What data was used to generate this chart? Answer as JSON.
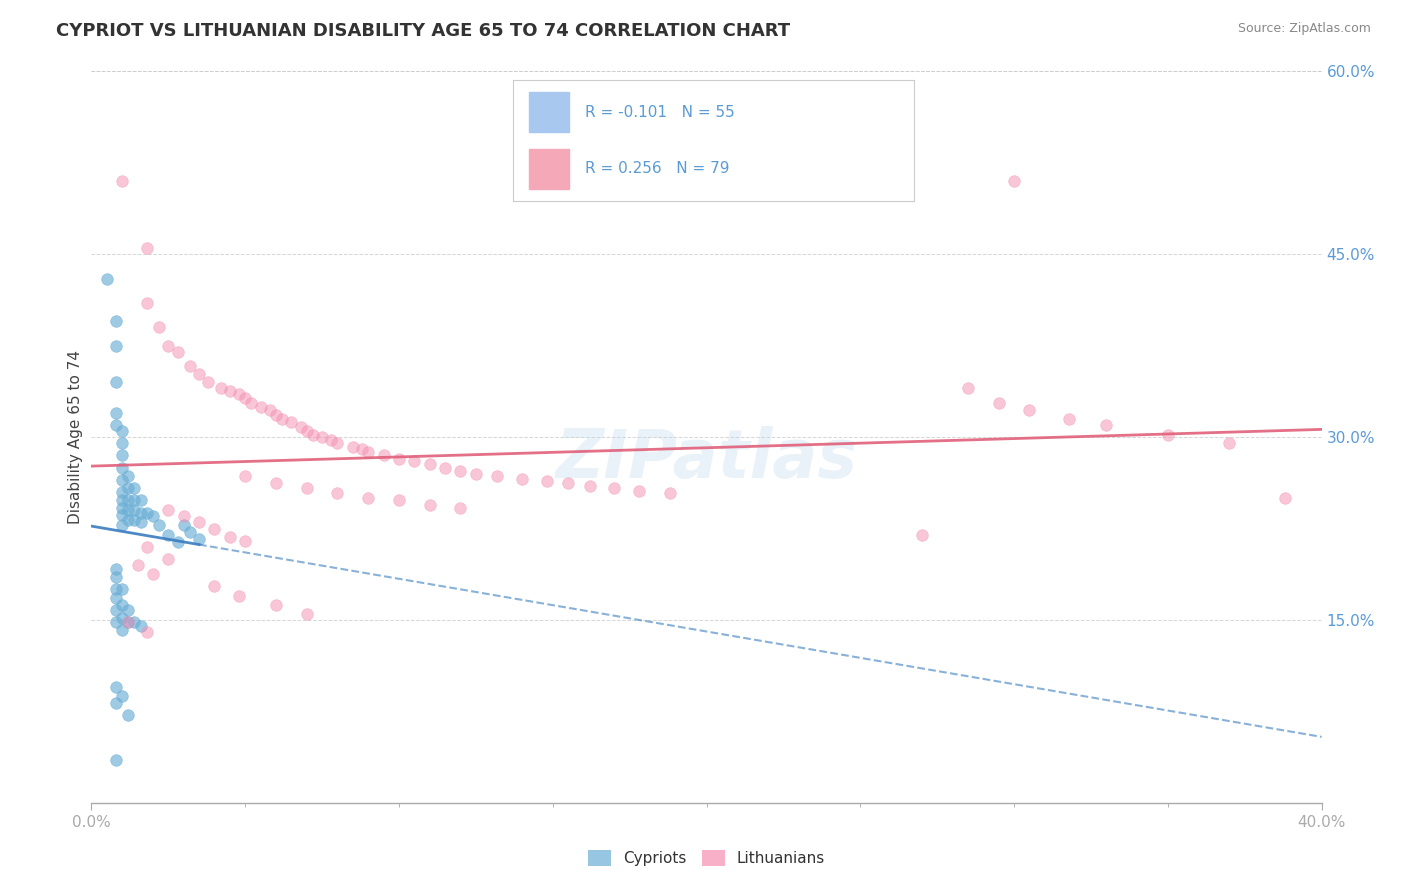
{
  "title": "CYPRIOT VS LITHUANIAN DISABILITY AGE 65 TO 74 CORRELATION CHART",
  "source_text": "Source: ZipAtlas.com",
  "ylabel": "Disability Age 65 to 74",
  "xlim": [
    0.0,
    0.4
  ],
  "ylim": [
    0.0,
    0.6
  ],
  "watermark": "ZIPatlas",
  "cypriot_color": "#6aaed6",
  "lithuanian_color": "#f48fb1",
  "cypriot_line_color": "#3a7dbf",
  "lithuanian_line_color": "#e0607a",
  "grid_color": "#cccccc",
  "background_color": "#ffffff",
  "legend_box_color": "#a8c8f0",
  "legend_box_color2": "#f5a8b8",
  "label_color": "#5b9bd5",
  "cypriot_points": [
    [
      0.005,
      0.43
    ],
    [
      0.008,
      0.395
    ],
    [
      0.008,
      0.375
    ],
    [
      0.008,
      0.345
    ],
    [
      0.008,
      0.32
    ],
    [
      0.008,
      0.31
    ],
    [
      0.01,
      0.305
    ],
    [
      0.01,
      0.295
    ],
    [
      0.01,
      0.285
    ],
    [
      0.01,
      0.275
    ],
    [
      0.01,
      0.265
    ],
    [
      0.01,
      0.255
    ],
    [
      0.01,
      0.248
    ],
    [
      0.01,
      0.242
    ],
    [
      0.01,
      0.236
    ],
    [
      0.01,
      0.228
    ],
    [
      0.012,
      0.268
    ],
    [
      0.012,
      0.258
    ],
    [
      0.012,
      0.248
    ],
    [
      0.012,
      0.24
    ],
    [
      0.012,
      0.232
    ],
    [
      0.014,
      0.258
    ],
    [
      0.014,
      0.248
    ],
    [
      0.014,
      0.24
    ],
    [
      0.014,
      0.232
    ],
    [
      0.016,
      0.248
    ],
    [
      0.016,
      0.238
    ],
    [
      0.016,
      0.23
    ],
    [
      0.018,
      0.238
    ],
    [
      0.02,
      0.235
    ],
    [
      0.022,
      0.228
    ],
    [
      0.025,
      0.22
    ],
    [
      0.028,
      0.214
    ],
    [
      0.03,
      0.228
    ],
    [
      0.032,
      0.222
    ],
    [
      0.035,
      0.216
    ],
    [
      0.008,
      0.192
    ],
    [
      0.008,
      0.185
    ],
    [
      0.008,
      0.175
    ],
    [
      0.008,
      0.168
    ],
    [
      0.008,
      0.158
    ],
    [
      0.008,
      0.148
    ],
    [
      0.01,
      0.175
    ],
    [
      0.01,
      0.162
    ],
    [
      0.01,
      0.152
    ],
    [
      0.01,
      0.142
    ],
    [
      0.012,
      0.158
    ],
    [
      0.012,
      0.148
    ],
    [
      0.014,
      0.148
    ],
    [
      0.016,
      0.145
    ],
    [
      0.008,
      0.095
    ],
    [
      0.008,
      0.082
    ],
    [
      0.01,
      0.088
    ],
    [
      0.012,
      0.072
    ],
    [
      0.008,
      0.035
    ]
  ],
  "lithuanian_points": [
    [
      0.01,
      0.51
    ],
    [
      0.018,
      0.455
    ],
    [
      0.018,
      0.41
    ],
    [
      0.022,
      0.39
    ],
    [
      0.025,
      0.375
    ],
    [
      0.028,
      0.37
    ],
    [
      0.032,
      0.358
    ],
    [
      0.035,
      0.352
    ],
    [
      0.038,
      0.345
    ],
    [
      0.042,
      0.34
    ],
    [
      0.045,
      0.338
    ],
    [
      0.048,
      0.335
    ],
    [
      0.05,
      0.332
    ],
    [
      0.052,
      0.328
    ],
    [
      0.055,
      0.325
    ],
    [
      0.058,
      0.322
    ],
    [
      0.06,
      0.318
    ],
    [
      0.062,
      0.315
    ],
    [
      0.065,
      0.312
    ],
    [
      0.068,
      0.308
    ],
    [
      0.07,
      0.305
    ],
    [
      0.072,
      0.302
    ],
    [
      0.075,
      0.3
    ],
    [
      0.078,
      0.298
    ],
    [
      0.08,
      0.295
    ],
    [
      0.085,
      0.292
    ],
    [
      0.088,
      0.29
    ],
    [
      0.09,
      0.288
    ],
    [
      0.095,
      0.285
    ],
    [
      0.1,
      0.282
    ],
    [
      0.105,
      0.28
    ],
    [
      0.11,
      0.278
    ],
    [
      0.115,
      0.275
    ],
    [
      0.12,
      0.272
    ],
    [
      0.125,
      0.27
    ],
    [
      0.132,
      0.268
    ],
    [
      0.14,
      0.266
    ],
    [
      0.148,
      0.264
    ],
    [
      0.155,
      0.262
    ],
    [
      0.162,
      0.26
    ],
    [
      0.17,
      0.258
    ],
    [
      0.178,
      0.256
    ],
    [
      0.188,
      0.254
    ],
    [
      0.05,
      0.268
    ],
    [
      0.06,
      0.262
    ],
    [
      0.07,
      0.258
    ],
    [
      0.08,
      0.254
    ],
    [
      0.09,
      0.25
    ],
    [
      0.1,
      0.248
    ],
    [
      0.11,
      0.244
    ],
    [
      0.12,
      0.242
    ],
    [
      0.025,
      0.24
    ],
    [
      0.03,
      0.235
    ],
    [
      0.035,
      0.23
    ],
    [
      0.04,
      0.225
    ],
    [
      0.045,
      0.218
    ],
    [
      0.05,
      0.215
    ],
    [
      0.018,
      0.21
    ],
    [
      0.025,
      0.2
    ],
    [
      0.015,
      0.195
    ],
    [
      0.02,
      0.188
    ],
    [
      0.04,
      0.178
    ],
    [
      0.048,
      0.17
    ],
    [
      0.06,
      0.162
    ],
    [
      0.07,
      0.155
    ],
    [
      0.012,
      0.148
    ],
    [
      0.018,
      0.14
    ],
    [
      0.285,
      0.34
    ],
    [
      0.295,
      0.328
    ],
    [
      0.305,
      0.322
    ],
    [
      0.318,
      0.315
    ],
    [
      0.33,
      0.31
    ],
    [
      0.35,
      0.302
    ],
    [
      0.37,
      0.295
    ],
    [
      0.388,
      0.25
    ],
    [
      0.27,
      0.22
    ],
    [
      0.3,
      0.51
    ]
  ]
}
